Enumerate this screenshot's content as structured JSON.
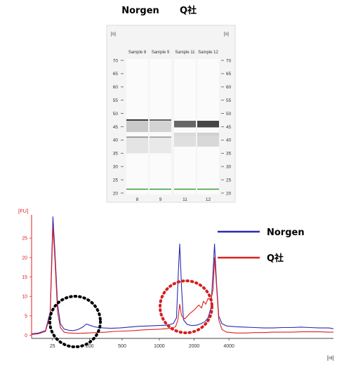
{
  "gel": {
    "group_left": "Norgen",
    "group_right": "Q社",
    "axis_unit": "[s]",
    "lanes": [
      {
        "name": "Sample 8",
        "number": "8",
        "group": "left",
        "bands": [
          {
            "s": 47.5,
            "w": 0.6,
            "i": 0.9
          },
          {
            "s": 41,
            "w": 0.5,
            "i": 0.8
          },
          {
            "s": 45,
            "w": 4,
            "i": 0.25
          },
          {
            "s": 38,
            "w": 6,
            "i": 0.12
          },
          {
            "s": 21.5,
            "w": 0.3,
            "i": 1,
            "marker": true
          }
        ]
      },
      {
        "name": "Sample 9",
        "number": "9",
        "group": "left",
        "bands": [
          {
            "s": 47.5,
            "w": 0.6,
            "i": 0.7
          },
          {
            "s": 41,
            "w": 0.5,
            "i": 0.7
          },
          {
            "s": 45,
            "w": 4,
            "i": 0.2
          },
          {
            "s": 38,
            "w": 6,
            "i": 0.1
          },
          {
            "s": 21.5,
            "w": 0.3,
            "i": 1,
            "marker": true
          }
        ]
      },
      {
        "name": "Sample 11",
        "number": "11",
        "group": "right",
        "bands": [
          {
            "s": 46,
            "w": 2.5,
            "i": 0.7
          },
          {
            "s": 42,
            "w": 1.2,
            "i": 0.45
          },
          {
            "s": 40,
            "w": 5,
            "i": 0.15
          },
          {
            "s": 21.5,
            "w": 0.3,
            "i": 1,
            "marker": true
          }
        ]
      },
      {
        "name": "Sample 12",
        "number": "12",
        "group": "right",
        "bands": [
          {
            "s": 46,
            "w": 2.5,
            "i": 0.85
          },
          {
            "s": 42,
            "w": 1.2,
            "i": 0.55
          },
          {
            "s": 40,
            "w": 5,
            "i": 0.18
          },
          {
            "s": 21.5,
            "w": 0.3,
            "i": 1,
            "marker": true
          }
        ]
      }
    ],
    "ticks": [
      20,
      25,
      30,
      35,
      40,
      45,
      50,
      55,
      60,
      65,
      70
    ]
  },
  "chart_data": {
    "type": "line",
    "y_unit": "[FU]",
    "x_unit": "[nt]",
    "y_ticks": [
      0,
      5,
      10,
      15,
      20,
      25
    ],
    "x_tick_labels": [
      "25",
      "200",
      "500",
      "1000",
      "2000",
      "4000"
    ],
    "legend": [
      {
        "name": "Norgen",
        "color": "#2b2bb0"
      },
      {
        "name": "Q社",
        "color": "#e02020"
      }
    ],
    "series": [
      {
        "name": "Norgen",
        "color": "#2b2bb0",
        "points": [
          [
            0,
            0.4
          ],
          [
            1.5,
            0.6
          ],
          [
            3,
            1.2
          ],
          [
            4,
            6
          ],
          [
            4.6,
            30.5
          ],
          [
            5,
            22
          ],
          [
            5.6,
            8
          ],
          [
            6.2,
            3
          ],
          [
            7,
            1.6
          ],
          [
            8,
            1.3
          ],
          [
            9,
            1.2
          ],
          [
            10,
            1.5
          ],
          [
            11,
            2.1
          ],
          [
            11.8,
            2.9
          ],
          [
            12.5,
            2.6
          ],
          [
            13.5,
            2.2
          ],
          [
            14.5,
            2.0
          ],
          [
            15.5,
            1.9
          ],
          [
            17,
            1.8
          ],
          [
            19,
            1.9
          ],
          [
            21,
            2.1
          ],
          [
            23,
            2.3
          ],
          [
            25,
            2.4
          ],
          [
            27,
            2.5
          ],
          [
            29,
            2.6
          ],
          [
            30.5,
            3.0
          ],
          [
            31.2,
            4.5
          ],
          [
            31.6,
            16
          ],
          [
            31.9,
            23.5
          ],
          [
            32.3,
            12
          ],
          [
            32.7,
            4
          ],
          [
            33.5,
            2.8
          ],
          [
            34.5,
            2.5
          ],
          [
            35.5,
            2.6
          ],
          [
            36.5,
            3.0
          ],
          [
            37.3,
            3.5
          ],
          [
            38,
            4.5
          ],
          [
            38.6,
            7
          ],
          [
            39.1,
            17
          ],
          [
            39.4,
            23.5
          ],
          [
            39.8,
            14
          ],
          [
            40.3,
            5
          ],
          [
            41,
            3.0
          ],
          [
            42,
            2.4
          ],
          [
            44,
            2.2
          ],
          [
            46,
            2.1
          ],
          [
            48,
            2.0
          ],
          [
            50,
            1.9
          ],
          [
            52,
            1.9
          ],
          [
            54,
            2.0
          ],
          [
            56,
            2.0
          ],
          [
            58,
            2.1
          ],
          [
            60,
            2.0
          ],
          [
            62,
            1.9
          ],
          [
            64,
            1.9
          ],
          [
            65,
            1.7
          ]
        ]
      },
      {
        "name": "Q社",
        "color": "#e02020",
        "points": [
          [
            0,
            0.2
          ],
          [
            1.5,
            0.4
          ],
          [
            3,
            1.0
          ],
          [
            4,
            5
          ],
          [
            4.6,
            28
          ],
          [
            5,
            20
          ],
          [
            5.6,
            6
          ],
          [
            6.2,
            2
          ],
          [
            7,
            0.8
          ],
          [
            8,
            0.6
          ],
          [
            10,
            0.5
          ],
          [
            12,
            0.6
          ],
          [
            14,
            0.7
          ],
          [
            16,
            0.8
          ],
          [
            18,
            1.0
          ],
          [
            20,
            1.1
          ],
          [
            22,
            1.2
          ],
          [
            24,
            1.4
          ],
          [
            26,
            1.5
          ],
          [
            28,
            1.6
          ],
          [
            30,
            1.8
          ],
          [
            31,
            2.2
          ],
          [
            31.5,
            4
          ],
          [
            31.9,
            8
          ],
          [
            32.3,
            5
          ],
          [
            33,
            4.2
          ],
          [
            34,
            5.5
          ],
          [
            35,
            6.5
          ],
          [
            36,
            7.8
          ],
          [
            36.6,
            7.0
          ],
          [
            37,
            8.8
          ],
          [
            37.5,
            8.0
          ],
          [
            38,
            9.5
          ],
          [
            38.6,
            9.0
          ],
          [
            39.1,
            12
          ],
          [
            39.4,
            20
          ],
          [
            39.8,
            13
          ],
          [
            40.3,
            4
          ],
          [
            41,
            1.5
          ],
          [
            42,
            0.8
          ],
          [
            44,
            0.6
          ],
          [
            46,
            0.6
          ],
          [
            48,
            0.7
          ],
          [
            50,
            0.7
          ],
          [
            52,
            0.8
          ],
          [
            54,
            0.8
          ],
          [
            56,
            0.8
          ],
          [
            58,
            0.9
          ],
          [
            60,
            0.9
          ],
          [
            62,
            0.9
          ],
          [
            64,
            0.8
          ],
          [
            65,
            0.8
          ]
        ]
      }
    ]
  }
}
